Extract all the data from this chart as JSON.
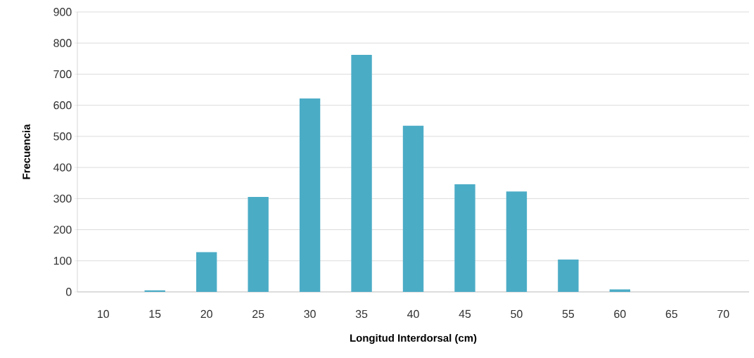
{
  "chart_data": {
    "type": "bar",
    "xlabel": "Longitud Interdorsal (cm)",
    "ylabel": "Frecuencia",
    "categories": [
      "10",
      "15",
      "20",
      "25",
      "30",
      "35",
      "40",
      "45",
      "50",
      "55",
      "60",
      "65",
      "70"
    ],
    "values": [
      0,
      5,
      128,
      305,
      622,
      762,
      534,
      346,
      323,
      104,
      8,
      0,
      0
    ],
    "color": "#4bacc6",
    "ylim": [
      0,
      900
    ],
    "yticks": [
      0,
      100,
      200,
      300,
      400,
      500,
      600,
      700,
      800,
      900
    ],
    "grid": "y"
  }
}
